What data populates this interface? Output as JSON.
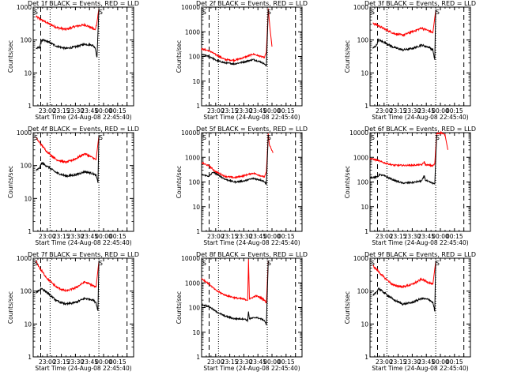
{
  "page": {
    "background": "#ffffff"
  },
  "colors": {
    "events": "#000000",
    "lld": "#ff0000",
    "axes": "#000000"
  },
  "chart_data": [
    {
      "type": "line",
      "title": "Det 1f BLACK = Events, RED = LLD",
      "xlabel": "Start Time (24-Aug-08 22:45:40)",
      "ylabel": "Counts/sec",
      "y_scale": "log",
      "ylim": [
        1,
        1000
      ],
      "yticks": [
        "1",
        "10",
        "100",
        "1000"
      ],
      "xticks": [
        "23:00",
        "23:15",
        "23:30",
        "23:45",
        "00:00",
        "00:15"
      ],
      "tick_minutes": [
        15,
        30,
        45,
        60,
        75,
        90
      ],
      "xlim_minutes": [
        0,
        107
      ],
      "markers": {
        "dashed_minutes": [
          8,
          100
        ],
        "dotted_minutes": [
          18,
          70
        ]
      },
      "annotations": [
        "S",
        "S"
      ],
      "annotation_minutes": [
        1,
        70
      ],
      "series": [
        {
          "color": "#ff0000",
          "x_minutes": [
            3,
            8,
            15,
            25,
            35,
            45,
            55,
            63,
            66,
            68,
            70
          ],
          "values": [
            520,
            420,
            330,
            240,
            210,
            260,
            290,
            230,
            200,
            350,
            900
          ]
        },
        {
          "color": "#000000",
          "x_minutes": [
            3,
            7,
            9,
            15,
            25,
            35,
            45,
            55,
            63,
            66,
            68,
            70
          ],
          "values": [
            55,
            60,
            100,
            90,
            65,
            55,
            62,
            75,
            70,
            60,
            30,
            900
          ]
        }
      ]
    },
    {
      "type": "line",
      "title": "Det 2f BLACK = Events, RED = LLD",
      "xlabel": "Start Time (24-Aug-08 22:45:40)",
      "ylabel": "Counts/sec",
      "y_scale": "log",
      "ylim": [
        1,
        10000
      ],
      "yticks": [
        "1",
        "10",
        "100",
        "1000",
        "10000"
      ],
      "xticks": [
        "23:00",
        "23:15",
        "23:30",
        "23:45",
        "00:00",
        "00:15"
      ],
      "tick_minutes": [
        15,
        30,
        45,
        60,
        75,
        90
      ],
      "xlim_minutes": [
        0,
        107
      ],
      "markers": {
        "dashed_minutes": [
          8,
          100
        ],
        "dotted_minutes": [
          18,
          70
        ]
      },
      "annotations": [
        "S",
        "S"
      ],
      "annotation_minutes": [
        1,
        70
      ],
      "series": [
        {
          "color": "#ff0000",
          "x_minutes": [
            0,
            8,
            15,
            25,
            35,
            45,
            55,
            63,
            67,
            69,
            71,
            72,
            75
          ],
          "values": [
            200,
            170,
            120,
            75,
            70,
            90,
            125,
            100,
            90,
            150,
            9000,
            3000,
            250
          ]
        },
        {
          "color": "#000000",
          "x_minutes": [
            0,
            8,
            12,
            15,
            25,
            35,
            45,
            55,
            63,
            67,
            69,
            71
          ],
          "values": [
            120,
            100,
            85,
            70,
            55,
            50,
            60,
            75,
            60,
            50,
            40,
            8000
          ]
        }
      ]
    },
    {
      "type": "line",
      "title": "Det 3f BLACK = Events, RED = LLD",
      "xlabel": "Start Time (24-Aug-08 22:45:40)",
      "ylabel": "Counts/sec",
      "y_scale": "log",
      "ylim": [
        1,
        1000
      ],
      "yticks": [
        "1",
        "10",
        "100",
        "1000"
      ],
      "xticks": [
        "23:00",
        "23:15",
        "23:30",
        "23:45",
        "00:00",
        "00:15"
      ],
      "tick_minutes": [
        15,
        30,
        45,
        60,
        75,
        90
      ],
      "xlim_minutes": [
        0,
        107
      ],
      "markers": {
        "dashed_minutes": [
          8,
          100
        ],
        "dotted_minutes": [
          18,
          70
        ]
      },
      "annotations": [
        "S",
        "S"
      ],
      "annotation_minutes": [
        1,
        70
      ],
      "series": [
        {
          "color": "#ff0000",
          "x_minutes": [
            3,
            8,
            15,
            25,
            35,
            45,
            55,
            63,
            67,
            70
          ],
          "values": [
            330,
            280,
            220,
            160,
            140,
            180,
            230,
            190,
            165,
            800
          ]
        },
        {
          "color": "#000000",
          "x_minutes": [
            3,
            7,
            9,
            15,
            25,
            35,
            45,
            55,
            63,
            67,
            69,
            70
          ],
          "values": [
            55,
            70,
            100,
            85,
            60,
            50,
            55,
            70,
            60,
            50,
            25,
            800
          ]
        }
      ]
    },
    {
      "type": "line",
      "title": "Det 4f BLACK = Events, RED = LLD",
      "xlabel": "Start Time (24-Aug-08 22:45:40)",
      "ylabel": "Counts/sec",
      "y_scale": "log",
      "ylim": [
        1,
        1000
      ],
      "yticks": [
        "1",
        "10",
        "100",
        "1000"
      ],
      "xticks": [
        "23:00",
        "23:15",
        "23:30",
        "23:45",
        "00:00",
        "00:15"
      ],
      "tick_minutes": [
        15,
        30,
        45,
        60,
        75,
        90
      ],
      "xlim_minutes": [
        0,
        107
      ],
      "markers": {
        "dashed_minutes": [
          8,
          100
        ],
        "dotted_minutes": [
          18,
          70
        ]
      },
      "annotations": [
        "S",
        "S"
      ],
      "annotation_minutes": [
        1,
        70
      ],
      "series": [
        {
          "color": "#ff0000",
          "x_minutes": [
            3,
            8,
            15,
            25,
            35,
            45,
            55,
            63,
            67,
            70
          ],
          "values": [
            700,
            450,
            260,
            150,
            125,
            160,
            230,
            175,
            150,
            800
          ]
        },
        {
          "color": "#000000",
          "x_minutes": [
            3,
            7,
            9,
            15,
            25,
            35,
            45,
            55,
            63,
            67,
            69,
            70
          ],
          "values": [
            70,
            85,
            120,
            95,
            60,
            48,
            52,
            65,
            58,
            50,
            30,
            800
          ]
        }
      ]
    },
    {
      "type": "line",
      "title": "Det 5f BLACK = Events, RED = LLD",
      "xlabel": "Start Time (24-Aug-08 22:45:40)",
      "ylabel": "Counts/sec",
      "y_scale": "log",
      "ylim": [
        1,
        10000
      ],
      "yticks": [
        "1",
        "10",
        "100",
        "1000",
        "10000"
      ],
      "xticks": [
        "23:00",
        "23:15",
        "23:30",
        "23:45",
        "00:00",
        "00:15"
      ],
      "tick_minutes": [
        15,
        30,
        45,
        60,
        75,
        90
      ],
      "xlim_minutes": [
        0,
        107
      ],
      "markers": {
        "dashed_minutes": [
          8,
          100
        ],
        "dotted_minutes": [
          18,
          70
        ]
      },
      "annotations": [
        "S",
        "S"
      ],
      "annotation_minutes": [
        1,
        70
      ],
      "series": [
        {
          "color": "#ff0000",
          "x_minutes": [
            0,
            8,
            15,
            25,
            35,
            45,
            55,
            63,
            67,
            69,
            71,
            72,
            76
          ],
          "values": [
            600,
            450,
            260,
            170,
            150,
            180,
            230,
            180,
            160,
            250,
            9000,
            3500,
            1500
          ]
        },
        {
          "color": "#000000",
          "x_minutes": [
            0,
            8,
            12,
            15,
            25,
            35,
            45,
            55,
            63,
            67,
            69,
            71
          ],
          "values": [
            200,
            170,
            250,
            220,
            130,
            100,
            110,
            140,
            120,
            105,
            80,
            8000
          ]
        }
      ]
    },
    {
      "type": "line",
      "title": "Det 6f BLACK = Events, RED = LLD",
      "xlabel": "Start Time (24-Aug-08 22:45:40)",
      "ylabel": "Counts/sec",
      "y_scale": "log",
      "ylim": [
        1,
        10000
      ],
      "yticks": [
        "1",
        "10",
        "100",
        "1000",
        "10000"
      ],
      "xticks": [
        "23:00",
        "23:15",
        "23:30",
        "23:45",
        "00:00",
        "00:15"
      ],
      "tick_minutes": [
        15,
        30,
        45,
        60,
        75,
        90
      ],
      "xlim_minutes": [
        0,
        107
      ],
      "markers": {
        "dashed_minutes": [
          8,
          100
        ],
        "dotted_minutes": [
          18,
          70
        ]
      },
      "annotations": [
        "S",
        "S"
      ],
      "annotation_minutes": [
        1,
        70
      ],
      "series": [
        {
          "color": "#ff0000",
          "x_minutes": [
            0,
            8,
            15,
            25,
            35,
            45,
            55,
            58,
            59,
            63,
            67,
            69,
            71,
            76,
            80,
            83
          ],
          "values": [
            900,
            750,
            600,
            480,
            470,
            480,
            500,
            650,
            500,
            480,
            450,
            550,
            9000,
            10000,
            8000,
            2000
          ]
        },
        {
          "color": "#000000",
          "x_minutes": [
            0,
            8,
            10,
            15,
            25,
            35,
            45,
            55,
            58,
            59,
            63,
            67,
            69,
            71
          ],
          "values": [
            150,
            160,
            200,
            180,
            120,
            90,
            95,
            110,
            180,
            120,
            100,
            90,
            80,
            8000
          ]
        }
      ]
    },
    {
      "type": "line",
      "title": "Det 7f BLACK = Events, RED = LLD",
      "xlabel": "Start Time (24-Aug-08 22:45:40)",
      "ylabel": "Counts/sec",
      "y_scale": "log",
      "ylim": [
        1,
        1000
      ],
      "yticks": [
        "1",
        "10",
        "100",
        "1000"
      ],
      "xticks": [
        "23:00",
        "23:15",
        "23:30",
        "23:45",
        "00:00",
        "00:15"
      ],
      "tick_minutes": [
        15,
        30,
        45,
        60,
        75,
        90
      ],
      "xlim_minutes": [
        0,
        107
      ],
      "markers": {
        "dashed_minutes": [
          8,
          100
        ],
        "dotted_minutes": [
          18,
          70
        ]
      },
      "annotations": [
        "S",
        "S"
      ],
      "annotation_minutes": [
        1,
        70
      ],
      "series": [
        {
          "color": "#ff0000",
          "x_minutes": [
            3,
            8,
            15,
            25,
            35,
            45,
            55,
            63,
            67,
            70
          ],
          "values": [
            800,
            450,
            240,
            130,
            100,
            125,
            190,
            150,
            130,
            800
          ]
        },
        {
          "color": "#000000",
          "x_minutes": [
            3,
            7,
            9,
            15,
            25,
            35,
            45,
            55,
            63,
            67,
            69,
            70
          ],
          "values": [
            90,
            110,
            120,
            90,
            50,
            40,
            45,
            60,
            55,
            45,
            25,
            800
          ]
        }
      ]
    },
    {
      "type": "line",
      "title": "Det 8f BLACK = Events, RED = LLD",
      "xlabel": "Start Time (24-Aug-08 22:45:40)",
      "ylabel": "Counts/sec",
      "y_scale": "log",
      "ylim": [
        1,
        10000
      ],
      "yticks": [
        "1",
        "10",
        "100",
        "1000",
        "10000"
      ],
      "xticks": [
        "23:00",
        "23:15",
        "23:30",
        "23:45",
        "00:00",
        "00:15"
      ],
      "tick_minutes": [
        15,
        30,
        45,
        60,
        75,
        90
      ],
      "xlim_minutes": [
        0,
        107
      ],
      "markers": {
        "dashed_minutes": [
          8,
          100
        ],
        "dotted_minutes": [
          18,
          70
        ]
      },
      "annotations": [
        "S",
        "S"
      ],
      "annotation_minutes": [
        1,
        70
      ],
      "series": [
        {
          "color": "#ff0000",
          "x_minutes": [
            0,
            8,
            15,
            25,
            35,
            45,
            49,
            50,
            51,
            58,
            63,
            67,
            69,
            71
          ],
          "values": [
            1500,
            900,
            500,
            320,
            250,
            220,
            200,
            9000,
            220,
            300,
            250,
            200,
            150,
            8000
          ]
        },
        {
          "color": "#000000",
          "x_minutes": [
            0,
            8,
            15,
            25,
            35,
            45,
            49,
            50,
            51,
            58,
            63,
            67,
            69,
            71
          ],
          "values": [
            130,
            110,
            70,
            45,
            35,
            35,
            30,
            70,
            35,
            40,
            35,
            30,
            20,
            8000
          ]
        }
      ]
    },
    {
      "type": "line",
      "title": "Det 9f BLACK = Events, RED = LLD",
      "xlabel": "Start Time (24-Aug-08 22:45:40)",
      "ylabel": "Counts/sec",
      "y_scale": "log",
      "ylim": [
        1,
        1000
      ],
      "yticks": [
        "1",
        "10",
        "100",
        "1000"
      ],
      "xticks": [
        "23:00",
        "23:15",
        "23:30",
        "23:45",
        "00:00",
        "00:15"
      ],
      "tick_minutes": [
        15,
        30,
        45,
        60,
        75,
        90
      ],
      "xlim_minutes": [
        0,
        107
      ],
      "markers": {
        "dashed_minutes": [
          8,
          100
        ],
        "dotted_minutes": [
          18,
          70
        ]
      },
      "annotations": [
        "S",
        "S"
      ],
      "annotation_minutes": [
        1,
        70
      ],
      "series": [
        {
          "color": "#ff0000",
          "x_minutes": [
            3,
            8,
            15,
            25,
            35,
            45,
            55,
            63,
            67,
            70
          ],
          "values": [
            600,
            420,
            260,
            150,
            135,
            160,
            230,
            180,
            160,
            800
          ]
        },
        {
          "color": "#000000",
          "x_minutes": [
            3,
            7,
            9,
            15,
            25,
            35,
            45,
            55,
            63,
            67,
            69,
            70
          ],
          "values": [
            70,
            95,
            120,
            90,
            55,
            40,
            45,
            60,
            55,
            45,
            25,
            800
          ]
        }
      ]
    }
  ]
}
